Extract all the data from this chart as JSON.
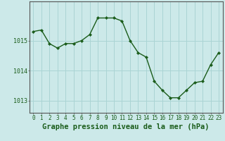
{
  "x": [
    0,
    1,
    2,
    3,
    4,
    5,
    6,
    7,
    8,
    9,
    10,
    11,
    12,
    13,
    14,
    15,
    16,
    17,
    18,
    19,
    20,
    21,
    22,
    23
  ],
  "y": [
    1015.3,
    1015.35,
    1014.9,
    1014.75,
    1014.9,
    1014.9,
    1015.0,
    1015.2,
    1015.75,
    1015.75,
    1015.75,
    1015.65,
    1015.0,
    1014.6,
    1014.45,
    1013.65,
    1013.35,
    1013.1,
    1013.1,
    1013.35,
    1013.6,
    1013.65,
    1014.2,
    1014.6
  ],
  "line_color": "#1a5c1a",
  "marker": "D",
  "marker_size": 2.2,
  "linewidth": 1.0,
  "bg_color": "#cce9e9",
  "grid_color": "#aad4d4",
  "xlabel": "Graphe pression niveau de la mer (hPa)",
  "xlabel_fontsize": 7.5,
  "xlabel_color": "#1a5c1a",
  "ytick_labels": [
    "1013",
    "1014",
    "1015"
  ],
  "ytick_values": [
    1013,
    1014,
    1015
  ],
  "xticks": [
    0,
    1,
    2,
    3,
    4,
    5,
    6,
    7,
    8,
    9,
    10,
    11,
    12,
    13,
    14,
    15,
    16,
    17,
    18,
    19,
    20,
    21,
    22,
    23
  ],
  "tick_fontsize": 5.5,
  "tick_color": "#1a5c1a",
  "ylim": [
    1012.6,
    1016.3
  ],
  "xlim": [
    -0.5,
    23.5
  ],
  "spine_color": "#555555"
}
